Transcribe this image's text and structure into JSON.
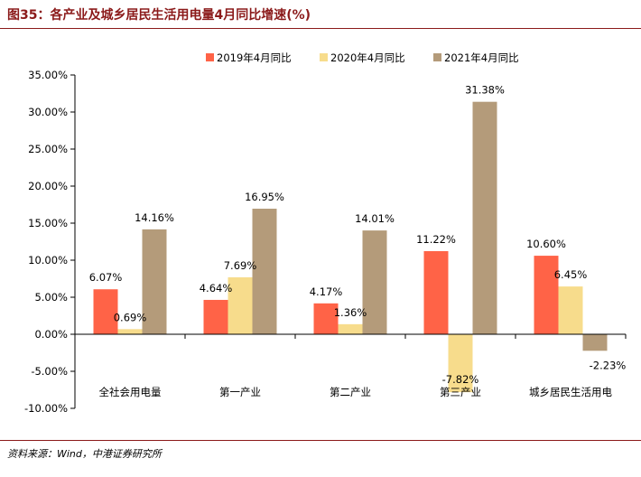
{
  "figure_title": "图35：各产业及城乡居民生活用电量4月同比增速(%)",
  "source_note": "资料来源：Wind，中港证券研究所",
  "colors": {
    "accent": "#8B1A1A",
    "axis": "#000000"
  },
  "chart_data": {
    "type": "bar",
    "title": "",
    "xlabel": "",
    "ylabel": "",
    "categories": [
      "全社会用电量",
      "第一产业",
      "第二产业",
      "第三产业",
      "城乡居民生活用电"
    ],
    "series": [
      {
        "name": "2019年4月同比",
        "color": "#FF6347",
        "values": [
          6.07,
          4.64,
          4.17,
          11.22,
          10.6
        ]
      },
      {
        "name": "2020年4月同比",
        "color": "#F7DC8C",
        "values": [
          0.69,
          7.69,
          1.36,
          -7.82,
          6.45
        ]
      },
      {
        "name": "2021年4月同比",
        "color": "#B49B7A",
        "values": [
          14.16,
          16.95,
          14.01,
          31.38,
          -2.23
        ]
      }
    ],
    "ylim": [
      -10,
      35
    ],
    "yticks": [
      -10,
      -5,
      0,
      5,
      10,
      15,
      20,
      25,
      30,
      35
    ],
    "ytick_labels": [
      "-10.00%",
      "-5.00%",
      "0.00%",
      "5.00%",
      "10.00%",
      "15.00%",
      "20.00%",
      "25.00%",
      "30.00%",
      "35.00%"
    ],
    "data_labels": [
      [
        "6.07%",
        "4.64%",
        "4.17%",
        "11.22%",
        "10.60%"
      ],
      [
        "0.69%",
        "7.69%",
        "1.36%",
        "-7.82%",
        "6.45%"
      ],
      [
        "14.16%",
        "16.95%",
        "14.01%",
        "31.38%",
        "-2.23%"
      ]
    ],
    "legend_position": "top-center",
    "grid": false
  }
}
